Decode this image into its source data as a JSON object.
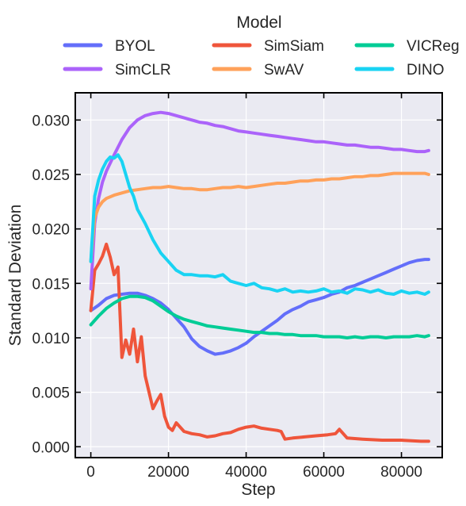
{
  "chart_data": {
    "type": "line",
    "title": "",
    "xlabel": "Step",
    "ylabel": "Standard Deviation",
    "xlim": [
      -4000,
      90500
    ],
    "ylim": [
      -0.001,
      0.0325
    ],
    "xticks": [
      0,
      20000,
      40000,
      60000,
      80000
    ],
    "xtick_labels": [
      "0",
      "20000",
      "40000",
      "60000",
      "80000"
    ],
    "yticks": [
      0.0,
      0.005,
      0.01,
      0.015,
      0.02,
      0.025,
      0.03
    ],
    "ytick_labels": [
      "0.000",
      "0.005",
      "0.010",
      "0.015",
      "0.020",
      "0.025",
      "0.030"
    ],
    "grid": true,
    "background": "#eaeaf2",
    "legend": {
      "title": "Model",
      "placement": "top",
      "columns": 3
    },
    "series": [
      {
        "name": "BYOL",
        "color": "#636efa",
        "x": [
          0,
          2000,
          4000,
          6000,
          8000,
          10000,
          12000,
          14000,
          16000,
          18000,
          20000,
          22000,
          24000,
          26000,
          28000,
          30000,
          32000,
          34000,
          36000,
          38000,
          40000,
          42000,
          44000,
          46000,
          48000,
          50000,
          52000,
          54000,
          56000,
          58000,
          60000,
          62000,
          64000,
          66000,
          68000,
          70000,
          72000,
          74000,
          76000,
          78000,
          80000,
          82000,
          84000,
          86000,
          87000
        ],
        "y": [
          0.0125,
          0.013,
          0.0136,
          0.0139,
          0.014,
          0.0141,
          0.0141,
          0.0139,
          0.0136,
          0.0132,
          0.0126,
          0.0118,
          0.011,
          0.0099,
          0.0092,
          0.0088,
          0.0085,
          0.0086,
          0.0088,
          0.0091,
          0.0095,
          0.0101,
          0.0106,
          0.0111,
          0.0116,
          0.0122,
          0.0126,
          0.0129,
          0.0133,
          0.0135,
          0.0137,
          0.014,
          0.0142,
          0.0146,
          0.0148,
          0.0151,
          0.0154,
          0.0157,
          0.016,
          0.0163,
          0.0166,
          0.0169,
          0.0171,
          0.0172,
          0.0172
        ]
      },
      {
        "name": "SimSiam",
        "color": "#ef553b",
        "x": [
          0,
          1000,
          2000,
          3000,
          4000,
          5000,
          6000,
          7000,
          8000,
          9000,
          10000,
          11000,
          12000,
          13000,
          14000,
          15000,
          16000,
          17000,
          18000,
          19000,
          20000,
          21000,
          22000,
          24000,
          26000,
          28000,
          30000,
          32000,
          34000,
          36000,
          38000,
          40000,
          42000,
          44000,
          46000,
          48000,
          49000,
          50000,
          52000,
          55000,
          58000,
          61000,
          63000,
          64000,
          66000,
          70000,
          75000,
          80000,
          85000,
          87000
        ],
        "y": [
          0.0125,
          0.0162,
          0.0168,
          0.0175,
          0.0186,
          0.0174,
          0.0158,
          0.0165,
          0.0082,
          0.0098,
          0.0085,
          0.0108,
          0.0078,
          0.0101,
          0.0065,
          0.005,
          0.0035,
          0.0042,
          0.0048,
          0.0028,
          0.0018,
          0.0015,
          0.0022,
          0.0014,
          0.0012,
          0.0011,
          0.0009,
          0.001,
          0.0012,
          0.0013,
          0.0016,
          0.0018,
          0.0019,
          0.0017,
          0.0016,
          0.0015,
          0.0014,
          0.0007,
          0.0008,
          0.0009,
          0.001,
          0.0011,
          0.0012,
          0.0016,
          0.0008,
          0.0007,
          0.0006,
          0.0006,
          0.0005,
          0.0005
        ]
      },
      {
        "name": "VICReg",
        "color": "#00cc96",
        "x": [
          0,
          2000,
          4000,
          6000,
          8000,
          10000,
          12000,
          14000,
          16000,
          18000,
          20000,
          22000,
          24000,
          26000,
          28000,
          30000,
          32000,
          34000,
          36000,
          38000,
          40000,
          42000,
          44000,
          46000,
          48000,
          50000,
          52000,
          54000,
          56000,
          58000,
          60000,
          62000,
          64000,
          66000,
          68000,
          70000,
          72000,
          74000,
          76000,
          78000,
          80000,
          82000,
          84000,
          86000,
          87000
        ],
        "y": [
          0.0112,
          0.012,
          0.0127,
          0.0132,
          0.0136,
          0.0138,
          0.0138,
          0.0137,
          0.0134,
          0.0129,
          0.0124,
          0.012,
          0.0117,
          0.0115,
          0.0113,
          0.0111,
          0.011,
          0.0109,
          0.0108,
          0.0107,
          0.0106,
          0.0105,
          0.0105,
          0.0104,
          0.0104,
          0.0103,
          0.0103,
          0.0102,
          0.0102,
          0.0102,
          0.0101,
          0.0101,
          0.0101,
          0.01,
          0.0101,
          0.01,
          0.0101,
          0.0101,
          0.01,
          0.0101,
          0.0101,
          0.0101,
          0.0102,
          0.0101,
          0.0102
        ]
      },
      {
        "name": "SimCLR",
        "color": "#ab63fa",
        "x": [
          0,
          1000,
          2000,
          3000,
          4000,
          6000,
          8000,
          10000,
          12000,
          14000,
          16000,
          18000,
          20000,
          22000,
          24000,
          26000,
          28000,
          30000,
          32000,
          34000,
          36000,
          38000,
          40000,
          42000,
          44000,
          46000,
          48000,
          50000,
          52000,
          54000,
          56000,
          58000,
          60000,
          62000,
          64000,
          66000,
          68000,
          70000,
          72000,
          74000,
          76000,
          78000,
          80000,
          82000,
          84000,
          86000,
          87000
        ],
        "y": [
          0.0145,
          0.0205,
          0.0228,
          0.0243,
          0.0253,
          0.0268,
          0.0282,
          0.0293,
          0.03,
          0.0304,
          0.0306,
          0.0307,
          0.0306,
          0.0304,
          0.0302,
          0.03,
          0.0298,
          0.0297,
          0.0295,
          0.0294,
          0.0292,
          0.029,
          0.0289,
          0.0288,
          0.0287,
          0.0286,
          0.0285,
          0.0284,
          0.0283,
          0.0282,
          0.0281,
          0.028,
          0.028,
          0.0279,
          0.0278,
          0.0277,
          0.0277,
          0.0276,
          0.0275,
          0.0275,
          0.0274,
          0.0273,
          0.0273,
          0.0272,
          0.0271,
          0.0271,
          0.0272
        ]
      },
      {
        "name": "SwAV",
        "color": "#ffa15a",
        "x": [
          0,
          1000,
          2000,
          3000,
          4000,
          6000,
          8000,
          10000,
          12000,
          14000,
          16000,
          18000,
          20000,
          22000,
          24000,
          26000,
          28000,
          30000,
          32000,
          34000,
          36000,
          38000,
          40000,
          42000,
          44000,
          46000,
          48000,
          50000,
          52000,
          54000,
          56000,
          58000,
          60000,
          62000,
          64000,
          66000,
          68000,
          70000,
          72000,
          74000,
          76000,
          78000,
          80000,
          82000,
          84000,
          86000,
          87000
        ],
        "y": [
          0.017,
          0.021,
          0.022,
          0.0225,
          0.0228,
          0.0231,
          0.0233,
          0.0235,
          0.0236,
          0.0237,
          0.0238,
          0.0238,
          0.0239,
          0.0238,
          0.0237,
          0.0237,
          0.0236,
          0.0236,
          0.0237,
          0.0238,
          0.0238,
          0.0239,
          0.0238,
          0.0239,
          0.024,
          0.0241,
          0.0242,
          0.0242,
          0.0243,
          0.0244,
          0.0244,
          0.0245,
          0.0245,
          0.0246,
          0.0246,
          0.0247,
          0.0248,
          0.0248,
          0.0249,
          0.0249,
          0.025,
          0.0251,
          0.0251,
          0.0251,
          0.0251,
          0.0251,
          0.025
        ]
      },
      {
        "name": "DINO",
        "color": "#19d3f3",
        "x": [
          0,
          1000,
          2000,
          3000,
          4000,
          5000,
          6000,
          7000,
          8000,
          9000,
          10000,
          11000,
          12000,
          14000,
          16000,
          18000,
          20000,
          22000,
          24000,
          26000,
          28000,
          30000,
          32000,
          34000,
          36000,
          38000,
          40000,
          42000,
          44000,
          46000,
          48000,
          50000,
          52000,
          54000,
          56000,
          58000,
          60000,
          62000,
          64000,
          66000,
          68000,
          70000,
          72000,
          74000,
          76000,
          78000,
          80000,
          82000,
          84000,
          86000,
          87000
        ],
        "y": [
          0.017,
          0.023,
          0.0245,
          0.0255,
          0.0262,
          0.0266,
          0.0265,
          0.0268,
          0.0262,
          0.025,
          0.0238,
          0.023,
          0.0218,
          0.0205,
          0.019,
          0.0178,
          0.017,
          0.0162,
          0.0158,
          0.0158,
          0.0157,
          0.0157,
          0.0156,
          0.0158,
          0.0152,
          0.015,
          0.0148,
          0.015,
          0.0146,
          0.0145,
          0.0143,
          0.0145,
          0.0142,
          0.0143,
          0.0142,
          0.0143,
          0.0145,
          0.0142,
          0.0143,
          0.0141,
          0.0145,
          0.0144,
          0.0142,
          0.0144,
          0.0141,
          0.014,
          0.0143,
          0.0141,
          0.0142,
          0.014,
          0.0142
        ]
      }
    ]
  }
}
